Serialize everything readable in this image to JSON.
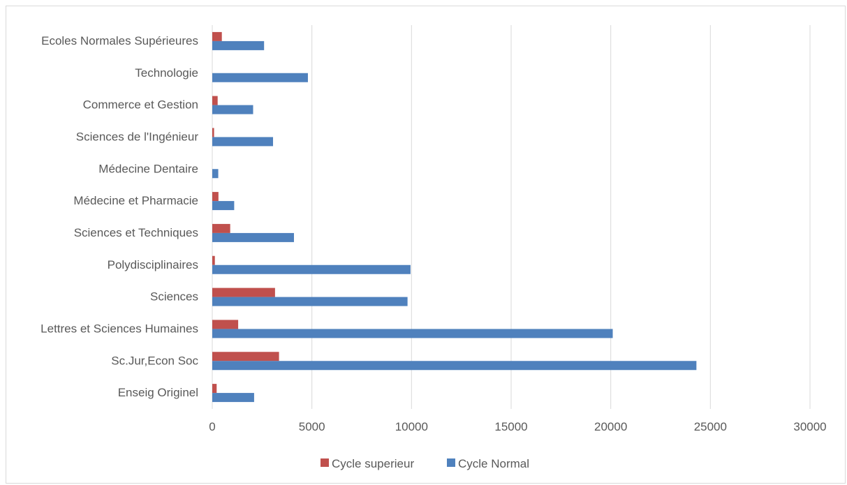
{
  "chart_data": {
    "type": "bar",
    "orientation": "horizontal",
    "title": "",
    "xlabel": "",
    "ylabel": "",
    "categories": [
      "Enseig Originel",
      "Sc.Jur,Econ Soc",
      "Lettres et Sciences Humaines",
      "Sciences",
      "Polydisciplinaires",
      "Sciences et Techniques",
      "Médecine et Pharmacie",
      "Médecine Dentaire",
      "Sciences de l'Ingénieur",
      "Commerce et Gestion",
      "Technologie",
      "Ecoles Normales Supérieures"
    ],
    "series": [
      {
        "name": "Cycle superieur",
        "color": "#c0504d",
        "values": [
          220,
          3350,
          1300,
          3150,
          130,
          900,
          310,
          0,
          90,
          270,
          0,
          480
        ]
      },
      {
        "name": "Cycle Normal",
        "color": "#4f81bd",
        "values": [
          2100,
          24300,
          20100,
          9800,
          9950,
          4100,
          1100,
          300,
          3050,
          2050,
          4800,
          2600
        ]
      }
    ],
    "xlim": [
      0,
      30000
    ],
    "x_ticks": [
      "0",
      "5000",
      "10000",
      "15000",
      "20000",
      "25000",
      "30000"
    ],
    "grid": true,
    "legend_position": "bottom"
  }
}
